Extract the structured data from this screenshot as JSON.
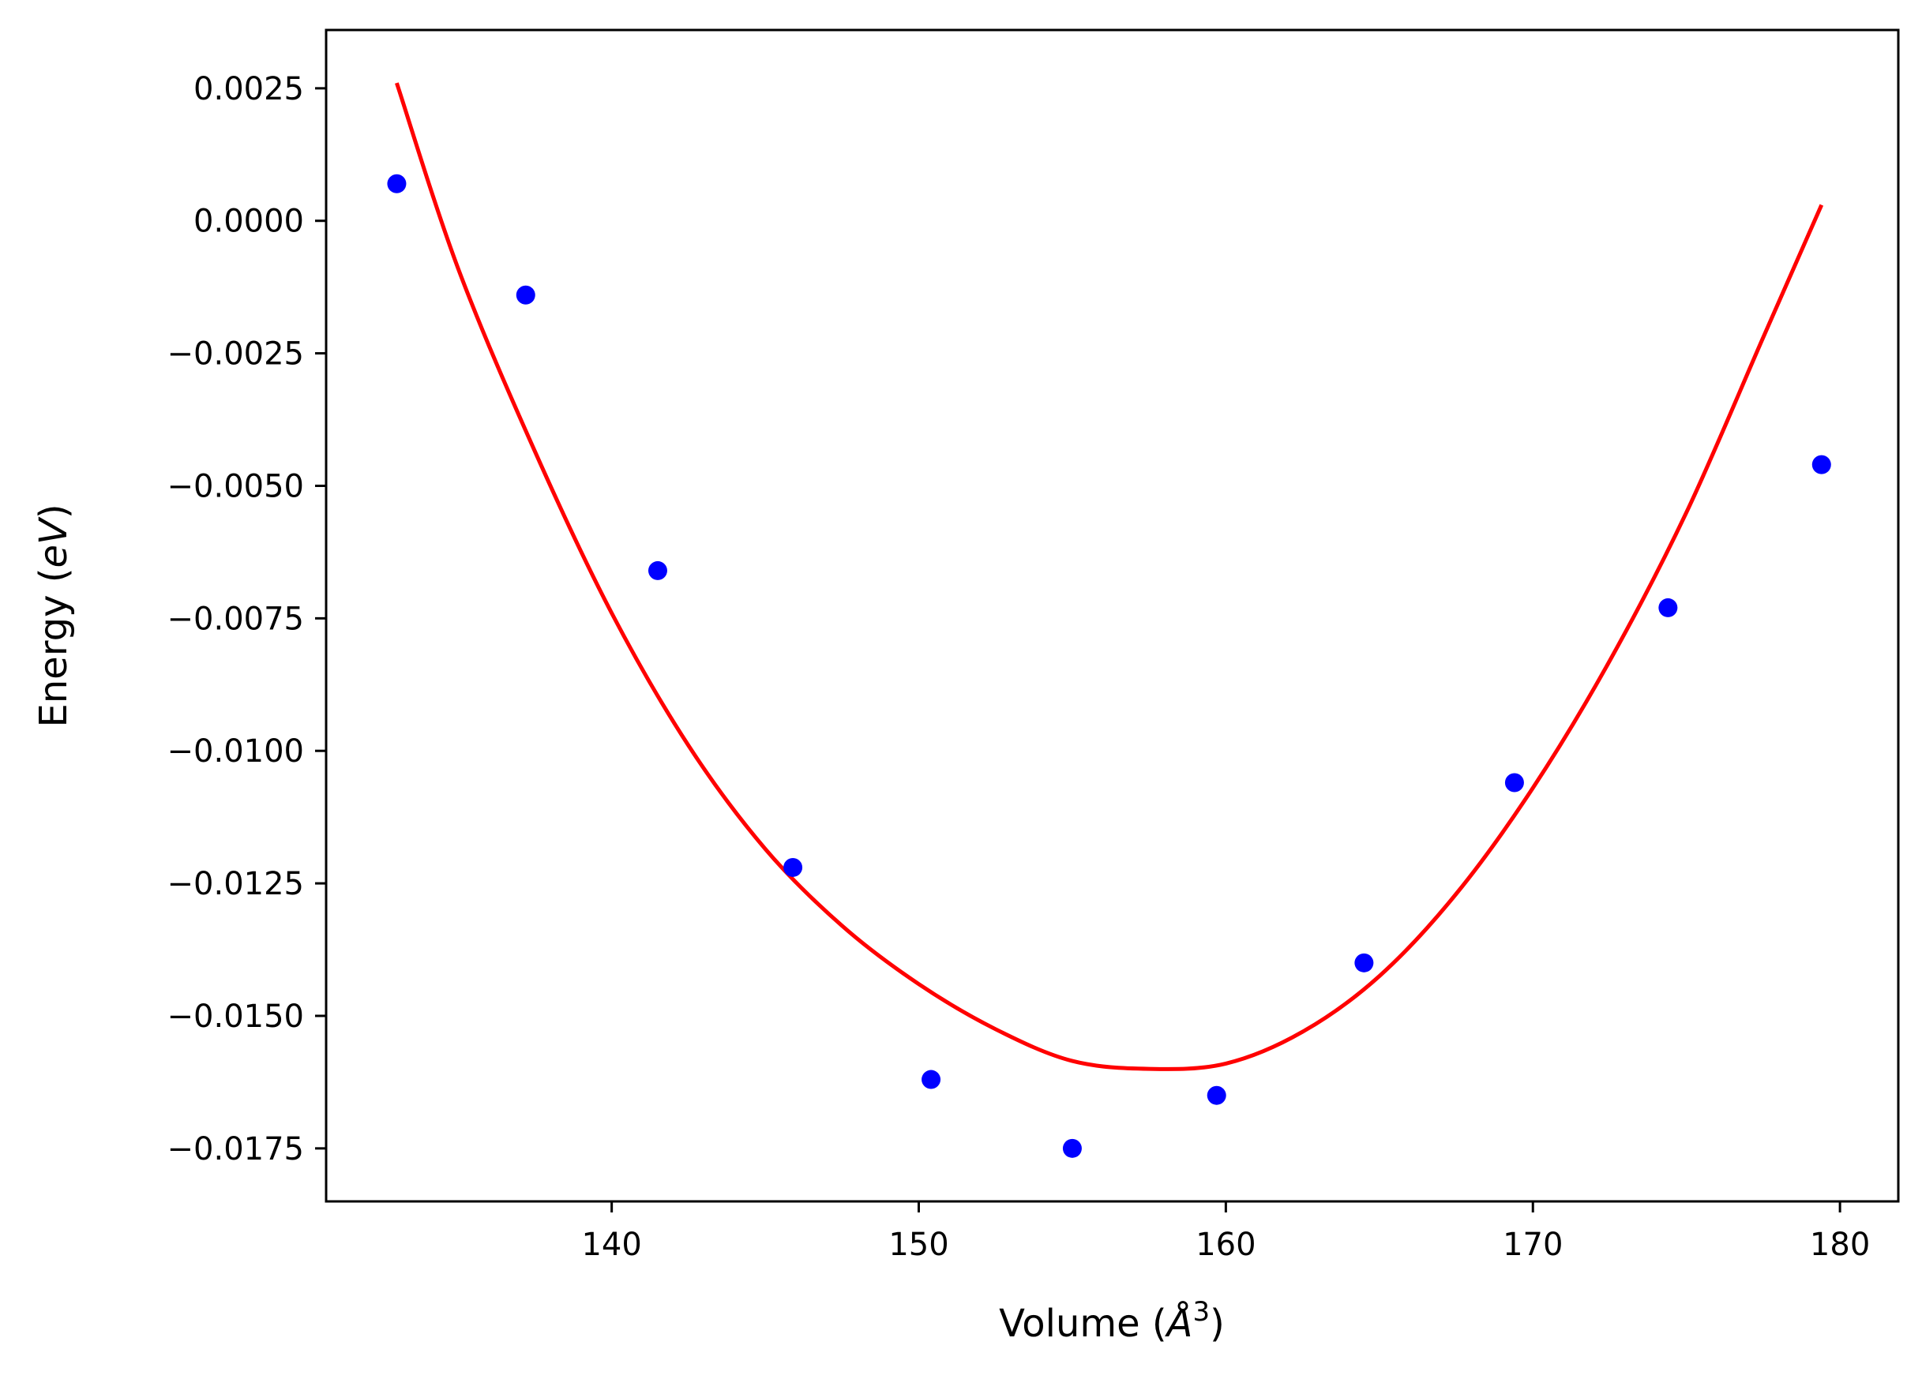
{
  "chart_data": {
    "type": "scatter",
    "title": "",
    "xlabel": "Volume (Å³)",
    "ylabel": "Energy (eV)",
    "xlim": [
      130.7,
      181.9
    ],
    "ylim": [
      -0.0185,
      0.0036
    ],
    "xticks": [
      140,
      150,
      160,
      170,
      180
    ],
    "xtick_labels": [
      "140",
      "150",
      "160",
      "170",
      "180"
    ],
    "yticks": [
      0.0025,
      0.0,
      -0.0025,
      -0.005,
      -0.0075,
      -0.01,
      -0.0125,
      -0.015,
      -0.0175
    ],
    "ytick_labels": [
      "0.0025",
      "0.0000",
      "−0.0025",
      "−0.0050",
      "−0.0075",
      "−0.0100",
      "−0.0125",
      "−0.0150",
      "−0.0175"
    ],
    "grid": false,
    "legend": "none",
    "series": [
      {
        "kind": "points",
        "color": "#0000ff",
        "x": [
          133.0,
          137.2,
          141.5,
          145.9,
          150.4,
          155.0,
          159.7,
          164.5,
          169.4,
          174.4,
          179.4
        ],
        "y": [
          0.0007,
          -0.0014,
          -0.0066,
          -0.0122,
          -0.0162,
          -0.0175,
          -0.0165,
          -0.014,
          -0.0106,
          -0.0073,
          -0.0046
        ]
      },
      {
        "kind": "fit_curve",
        "color": "#ff0000",
        "x": [
          133.0,
          135.0,
          137.5,
          140.0,
          142.5,
          145.0,
          147.5,
          150.0,
          152.5,
          155.0,
          157.5,
          160.0,
          162.5,
          165.0,
          167.5,
          170.0,
          172.5,
          175.0,
          177.5,
          179.4
        ],
        "y": [
          0.0026,
          -0.0009,
          -0.00435,
          -0.0074,
          -0.0099,
          -0.01185,
          -0.0133,
          -0.0144,
          -0.01525,
          -0.01585,
          -0.016,
          -0.0159,
          -0.0153,
          -0.01425,
          -0.0127,
          -0.0107,
          -0.0083,
          -0.0055,
          -0.0022,
          0.0003
        ]
      }
    ]
  }
}
